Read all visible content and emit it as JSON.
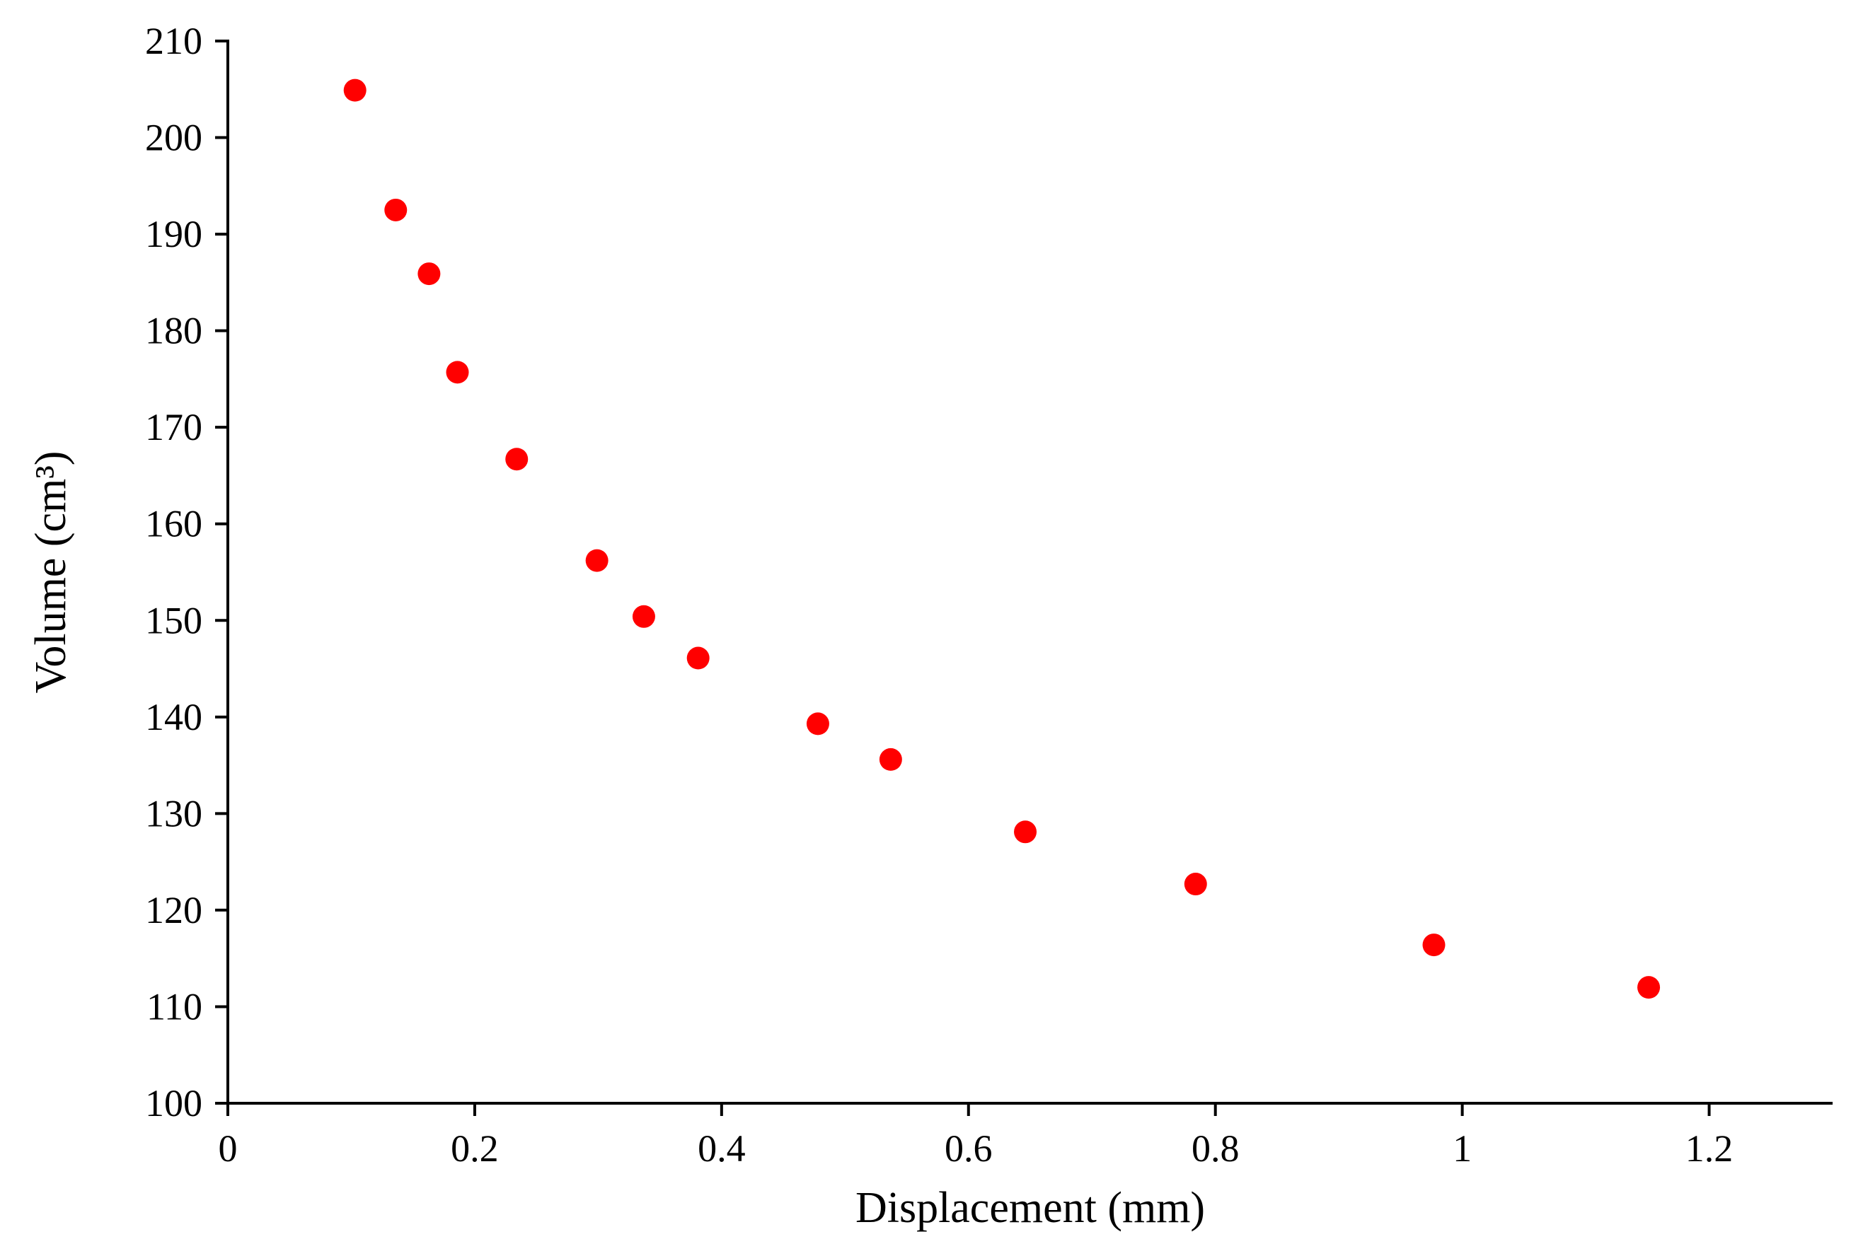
{
  "chart_data": {
    "type": "scatter",
    "title": "",
    "xlabel": "Displacement (mm)",
    "ylabel": "Volume (cm³)",
    "xlim": [
      0,
      1.3
    ],
    "ylim": [
      100,
      210
    ],
    "x_ticks": [
      0,
      0.2,
      0.4,
      0.6,
      0.8,
      1,
      1.2
    ],
    "x_tick_labels": [
      "0",
      "0.2",
      "0.4",
      "0.6",
      "0.8",
      "1",
      "1.2"
    ],
    "y_ticks": [
      100,
      110,
      120,
      130,
      140,
      150,
      160,
      170,
      180,
      190,
      200,
      210
    ],
    "y_tick_labels": [
      "100",
      "110",
      "120",
      "130",
      "140",
      "150",
      "160",
      "170",
      "180",
      "190",
      "200",
      "210"
    ],
    "grid": false,
    "legend": false,
    "marker_color": "#ff0000",
    "series": [
      {
        "x": [
          0.103,
          0.136,
          0.163,
          0.186,
          0.234,
          0.299,
          0.337,
          0.381,
          0.478,
          0.537,
          0.646,
          0.784,
          0.977,
          1.151
        ],
        "y": [
          204.9,
          192.5,
          185.9,
          175.7,
          166.7,
          156.2,
          150.4,
          146.1,
          139.3,
          135.6,
          128.1,
          122.7,
          116.4,
          112.0
        ]
      }
    ]
  }
}
